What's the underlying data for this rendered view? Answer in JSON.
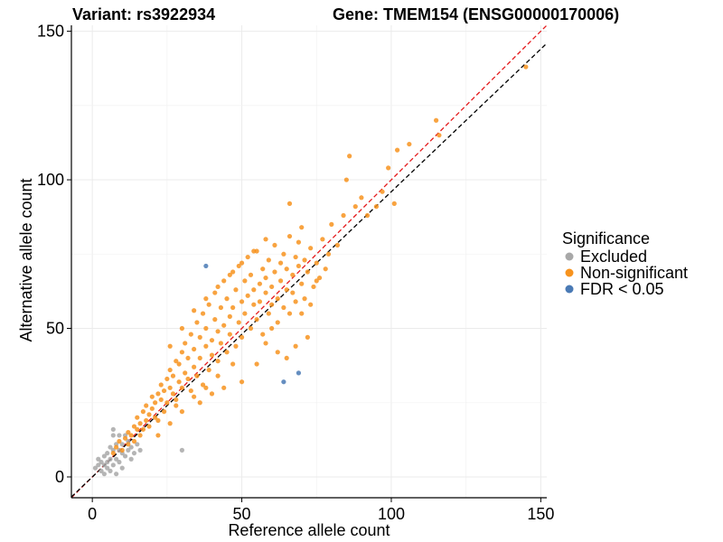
{
  "title_left": "Variant: rs3922934",
  "title_right": "Gene: TMEM154 (ENSG00000170006)",
  "chart_data": {
    "type": "scatter",
    "xlabel": "Reference allele count",
    "ylabel": "Alternative allele count",
    "xlim": [
      -7,
      152
    ],
    "ylim": [
      -7,
      152
    ],
    "x_ticks": [
      0,
      50,
      100,
      150
    ],
    "y_ticks": [
      0,
      50,
      100,
      150
    ],
    "grid": true,
    "legend_position": "right",
    "legend_title": "Significance",
    "reference_lines": [
      {
        "kind": "identity",
        "slope": 1.0,
        "color": "#e41a1c",
        "style": "dashed"
      },
      {
        "kind": "fit",
        "slope": 0.96,
        "color": "#000000",
        "style": "dashed"
      }
    ],
    "series": [
      {
        "name": "Excluded",
        "color": "#a8a8a8",
        "points": [
          [
            1,
            3
          ],
          [
            2,
            4
          ],
          [
            2,
            6
          ],
          [
            3,
            2
          ],
          [
            3,
            5
          ],
          [
            4,
            1
          ],
          [
            4,
            4
          ],
          [
            4,
            7
          ],
          [
            5,
            3
          ],
          [
            5,
            5
          ],
          [
            5,
            8
          ],
          [
            6,
            2
          ],
          [
            6,
            6
          ],
          [
            6,
            10
          ],
          [
            7,
            4
          ],
          [
            7,
            9
          ],
          [
            7,
            14
          ],
          [
            7,
            16
          ],
          [
            8,
            1
          ],
          [
            8,
            6
          ],
          [
            8,
            11
          ],
          [
            9,
            5
          ],
          [
            9,
            9
          ],
          [
            9,
            14
          ],
          [
            10,
            3
          ],
          [
            10,
            8
          ],
          [
            10,
            11
          ],
          [
            11,
            7
          ],
          [
            11,
            14
          ],
          [
            12,
            9
          ],
          [
            12,
            12
          ],
          [
            13,
            6
          ],
          [
            13,
            10
          ],
          [
            14,
            8
          ],
          [
            15,
            11
          ],
          [
            16,
            9
          ],
          [
            30,
            9
          ]
        ]
      },
      {
        "name": "Non-significant",
        "color": "#f7931e",
        "points": [
          [
            7,
            8
          ],
          [
            8,
            10
          ],
          [
            9,
            12
          ],
          [
            10,
            9
          ],
          [
            11,
            13
          ],
          [
            12,
            15
          ],
          [
            12,
            11
          ],
          [
            13,
            14
          ],
          [
            14,
            17
          ],
          [
            14,
            12
          ],
          [
            15,
            16
          ],
          [
            15,
            20
          ],
          [
            16,
            18
          ],
          [
            16,
            14
          ],
          [
            17,
            22
          ],
          [
            17,
            16
          ],
          [
            18,
            19
          ],
          [
            18,
            24
          ],
          [
            19,
            21
          ],
          [
            19,
            17
          ],
          [
            20,
            23
          ],
          [
            20,
            27
          ],
          [
            21,
            20
          ],
          [
            21,
            25
          ],
          [
            22,
            28
          ],
          [
            22,
            19
          ],
          [
            23,
            26
          ],
          [
            23,
            31
          ],
          [
            24,
            22
          ],
          [
            24,
            29
          ],
          [
            25,
            33
          ],
          [
            25,
            25
          ],
          [
            26,
            30
          ],
          [
            26,
            36
          ],
          [
            27,
            28
          ],
          [
            27,
            34
          ],
          [
            28,
            39
          ],
          [
            28,
            26
          ],
          [
            29,
            32
          ],
          [
            29,
            38
          ],
          [
            30,
            42
          ],
          [
            30,
            30
          ],
          [
            31,
            35
          ],
          [
            31,
            45
          ],
          [
            32,
            33
          ],
          [
            32,
            40
          ],
          [
            33,
            48
          ],
          [
            33,
            29
          ],
          [
            34,
            37
          ],
          [
            34,
            43
          ],
          [
            35,
            52
          ],
          [
            35,
            34
          ],
          [
            36,
            40
          ],
          [
            36,
            47
          ],
          [
            37,
            55
          ],
          [
            37,
            31
          ],
          [
            38,
            44
          ],
          [
            38,
            50
          ],
          [
            39,
            36
          ],
          [
            39,
            58
          ],
          [
            40,
            46
          ],
          [
            40,
            41
          ],
          [
            41,
            53
          ],
          [
            41,
            62
          ],
          [
            42,
            39
          ],
          [
            42,
            49
          ],
          [
            43,
            57
          ],
          [
            43,
            45
          ],
          [
            44,
            66
          ],
          [
            44,
            51
          ],
          [
            45,
            42
          ],
          [
            45,
            60
          ],
          [
            46,
            54
          ],
          [
            46,
            48
          ],
          [
            47,
            69
          ],
          [
            47,
            57
          ],
          [
            48,
            44
          ],
          [
            48,
            63
          ],
          [
            49,
            52
          ],
          [
            49,
            71
          ],
          [
            50,
            59
          ],
          [
            50,
            47
          ],
          [
            51,
            66
          ],
          [
            51,
            55
          ],
          [
            52,
            74
          ],
          [
            52,
            61
          ],
          [
            53,
            50
          ],
          [
            53,
            68
          ],
          [
            54,
            58
          ],
          [
            54,
            63
          ],
          [
            55,
            76
          ],
          [
            55,
            53
          ],
          [
            56,
            65
          ],
          [
            56,
            59
          ],
          [
            57,
            70
          ],
          [
            57,
            48
          ],
          [
            58,
            62
          ],
          [
            58,
            67
          ],
          [
            59,
            55
          ],
          [
            59,
            73
          ],
          [
            60,
            64
          ],
          [
            60,
            58
          ],
          [
            61,
            69
          ],
          [
            61,
            78
          ],
          [
            62,
            60
          ],
          [
            62,
            52
          ],
          [
            63,
            72
          ],
          [
            63,
            66
          ],
          [
            64,
            57
          ],
          [
            64,
            75
          ],
          [
            65,
            63
          ],
          [
            65,
            70
          ],
          [
            66,
            81
          ],
          [
            66,
            55
          ],
          [
            67,
            68
          ],
          [
            67,
            62
          ],
          [
            68,
            74
          ],
          [
            68,
            59
          ],
          [
            69,
            79
          ],
          [
            69,
            71
          ],
          [
            70,
            65
          ],
          [
            70,
            84
          ],
          [
            71,
            60
          ],
          [
            71,
            73
          ],
          [
            72,
            69
          ],
          [
            72,
            47
          ],
          [
            73,
            77
          ],
          [
            74,
            64
          ],
          [
            75,
            72
          ],
          [
            76,
            67
          ],
          [
            77,
            80
          ],
          [
            78,
            70
          ],
          [
            79,
            75
          ],
          [
            80,
            85
          ],
          [
            82,
            78
          ],
          [
            84,
            88
          ],
          [
            85,
            100
          ],
          [
            86,
            108
          ],
          [
            88,
            91
          ],
          [
            90,
            94
          ],
          [
            92,
            88
          ],
          [
            95,
            91
          ],
          [
            97,
            96
          ],
          [
            99,
            104
          ],
          [
            101,
            92
          ],
          [
            102,
            110
          ],
          [
            106,
            112
          ],
          [
            115,
            120
          ],
          [
            116,
            115
          ],
          [
            145,
            138
          ],
          [
            58,
            45
          ],
          [
            62,
            42
          ],
          [
            65,
            40
          ],
          [
            50,
            32
          ],
          [
            44,
            30
          ],
          [
            40,
            28
          ],
          [
            36,
            25
          ],
          [
            30,
            22
          ],
          [
            26,
            18
          ],
          [
            22,
            14
          ],
          [
            55,
            38
          ],
          [
            60,
            50
          ],
          [
            70,
            55
          ],
          [
            75,
            66
          ],
          [
            73,
            58
          ],
          [
            68,
            44
          ],
          [
            47,
            38
          ],
          [
            42,
            34
          ],
          [
            38,
            30
          ],
          [
            34,
            27
          ],
          [
            28,
            24
          ],
          [
            66,
            92
          ],
          [
            58,
            80
          ],
          [
            54,
            76
          ],
          [
            50,
            72
          ],
          [
            46,
            68
          ],
          [
            42,
            64
          ],
          [
            38,
            60
          ],
          [
            34,
            56
          ],
          [
            30,
            50
          ],
          [
            26,
            44
          ]
        ]
      },
      {
        "name": "FDR < 0.05",
        "color": "#4a7ab5",
        "points": [
          [
            38,
            71
          ],
          [
            64,
            32
          ],
          [
            69,
            35
          ]
        ]
      }
    ]
  }
}
